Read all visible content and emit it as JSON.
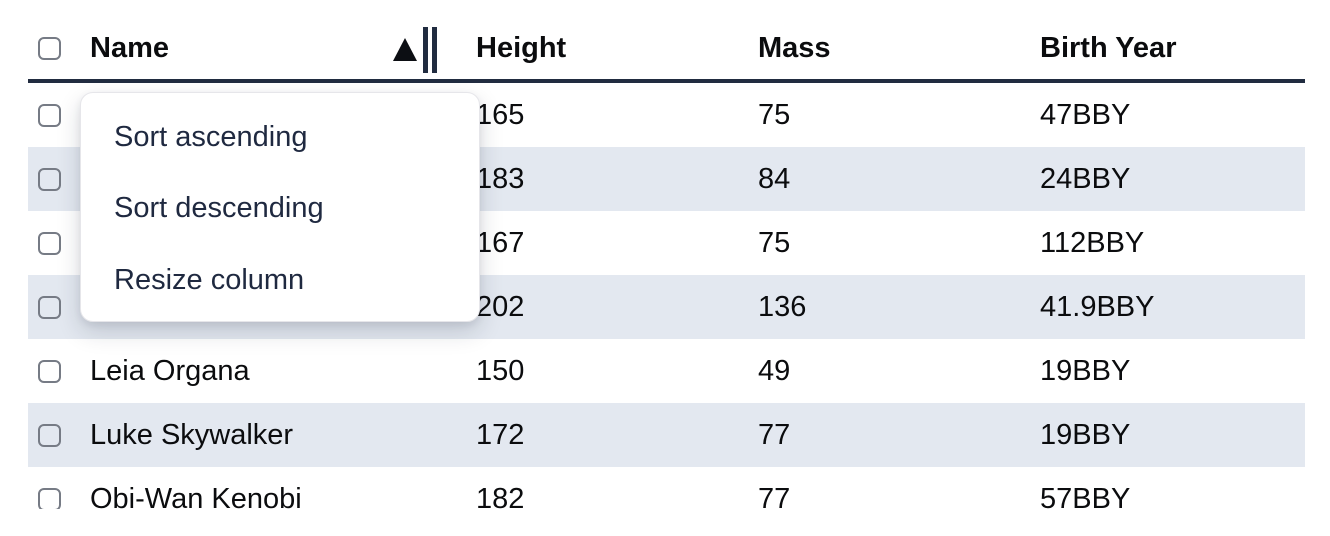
{
  "table": {
    "columns": [
      {
        "label": "Name",
        "sort": "ascending",
        "has_resize_handle": true
      },
      {
        "label": "Height"
      },
      {
        "label": "Mass"
      },
      {
        "label": "Birth Year"
      }
    ],
    "select_all_checked": false,
    "rows": [
      {
        "checked": false,
        "name": "",
        "height": "165",
        "mass": "75",
        "birth_year": "47BBY"
      },
      {
        "checked": false,
        "name": "",
        "height": "183",
        "mass": "84",
        "birth_year": "24BBY"
      },
      {
        "checked": false,
        "name": "",
        "height": "167",
        "mass": "75",
        "birth_year": "112BBY"
      },
      {
        "checked": false,
        "name": "",
        "height": "202",
        "mass": "136",
        "birth_year": "41.9BBY"
      },
      {
        "checked": false,
        "name": "Leia Organa",
        "height": "150",
        "mass": "49",
        "birth_year": "19BBY"
      },
      {
        "checked": false,
        "name": "Luke Skywalker",
        "height": "172",
        "mass": "77",
        "birth_year": "19BBY"
      },
      {
        "checked": false,
        "name": "Obi-Wan Kenobi",
        "height": "182",
        "mass": "77",
        "birth_year": "57BBY"
      }
    ]
  },
  "context_menu": {
    "items": [
      {
        "label": "Sort ascending"
      },
      {
        "label": "Sort descending"
      },
      {
        "label": "Resize column"
      }
    ]
  },
  "colors": {
    "row_stripe": "#e3e8f0",
    "header_border": "#212c40",
    "menu_text": "#1f2940",
    "body_text": "#0b0c0e",
    "checkbox_border": "#767b85"
  }
}
